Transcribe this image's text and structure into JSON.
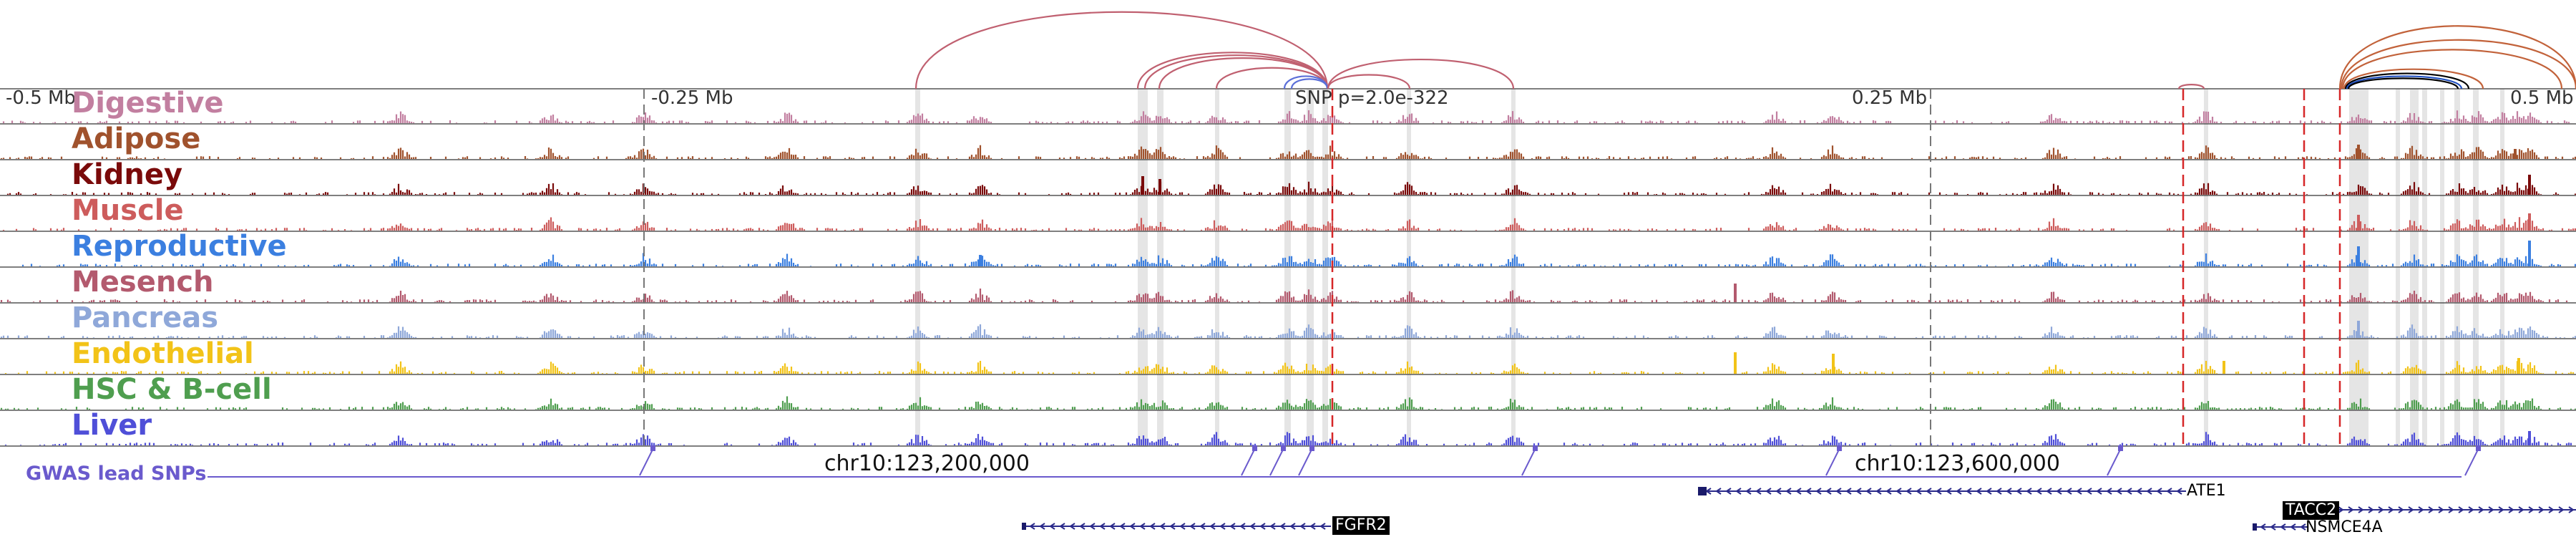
{
  "scale": {
    "left_label": "-0.5 Mb",
    "mid_left_label": "-0.25 Mb",
    "mid_right_label": "0.25 Mb",
    "right_label": "0.5 Mb"
  },
  "snp_label": "SNP p=2.0e-322",
  "tracks": [
    {
      "label": "Digestive",
      "color": "#c27fa0"
    },
    {
      "label": "Adipose",
      "color": "#a0522d"
    },
    {
      "label": "Kidney",
      "color": "#7a0a0a"
    },
    {
      "label": "Muscle",
      "color": "#cd5c5c"
    },
    {
      "label": "Reproductive",
      "color": "#3b7fe0"
    },
    {
      "label": "Mesench",
      "color": "#b35a6e"
    },
    {
      "label": "Pancreas",
      "color": "#8fa8d9"
    },
    {
      "label": "Endothelial",
      "color": "#f2c318"
    },
    {
      "label": "HSC & B-cell",
      "color": "#4f9e4f"
    },
    {
      "label": "Liver",
      "color": "#4f4fd8"
    }
  ],
  "gwas": {
    "label": "GWAS lead SNPs",
    "color": "#6a5acd"
  },
  "coordinates": {
    "left": "chr10:123,200,000",
    "right": "chr10:123,600,000"
  },
  "genes": [
    {
      "name": "FGFR2",
      "boxed": true
    },
    {
      "name": "ATE1",
      "boxed": false
    },
    {
      "name": "TACC2",
      "boxed": true
    },
    {
      "name": "NSMCE4A",
      "boxed": false
    }
  ],
  "colors": {
    "axis": "#444444",
    "highlight": "#dcdcdc",
    "snp_line": "#d62728",
    "link_arc": "#c06070"
  }
}
